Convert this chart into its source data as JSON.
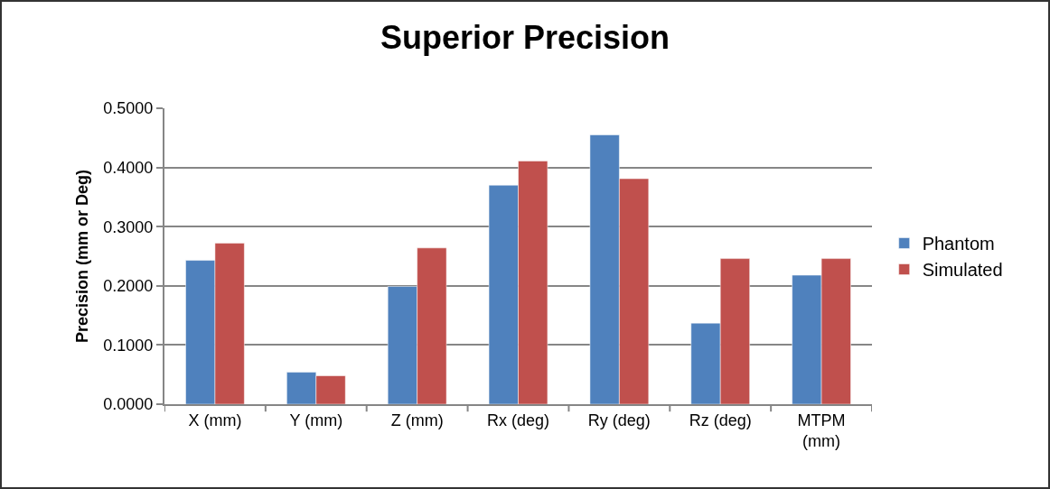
{
  "chart_data": {
    "type": "bar",
    "title": "Superior Precision",
    "ylabel": "Precision (mm or Deg)",
    "categories": [
      "X (mm)",
      "Y (mm)",
      "Z (mm)",
      "Rx (deg)",
      "Ry (deg)",
      "Rz (deg)",
      "MTPM (mm)"
    ],
    "series": [
      {
        "name": "Phantom",
        "color": "#4f81bd",
        "values": [
          0.243,
          0.054,
          0.199,
          0.37,
          0.455,
          0.137,
          0.218
        ]
      },
      {
        "name": "Simulated",
        "color": "#c0504d",
        "values": [
          0.272,
          0.048,
          0.264,
          0.411,
          0.381,
          0.246,
          0.246
        ]
      }
    ],
    "ylim": [
      0,
      0.5
    ],
    "yticks": [
      {
        "value": 0,
        "label": "0.0000"
      },
      {
        "value": 0.1,
        "label": "0.1000"
      },
      {
        "value": 0.2,
        "label": "0.2000"
      },
      {
        "value": 0.3,
        "label": "0.3000"
      },
      {
        "value": 0.4,
        "label": "0.4000"
      },
      {
        "value": 0.5,
        "label": "0.5000"
      }
    ],
    "grid": "y",
    "legend": "right"
  }
}
